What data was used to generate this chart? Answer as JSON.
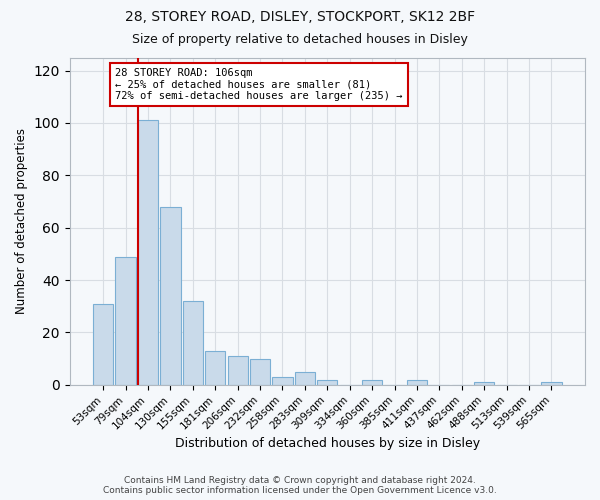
{
  "title1": "28, STOREY ROAD, DISLEY, STOCKPORT, SK12 2BF",
  "title2": "Size of property relative to detached houses in Disley",
  "xlabel": "Distribution of detached houses by size in Disley",
  "ylabel": "Number of detached properties",
  "bar_labels": [
    "53sqm",
    "79sqm",
    "104sqm",
    "130sqm",
    "155sqm",
    "181sqm",
    "206sqm",
    "232sqm",
    "258sqm",
    "283sqm",
    "309sqm",
    "334sqm",
    "360sqm",
    "385sqm",
    "411sqm",
    "437sqm",
    "462sqm",
    "488sqm",
    "513sqm",
    "539sqm",
    "565sqm"
  ],
  "bar_values": [
    31,
    49,
    101,
    68,
    32,
    13,
    11,
    10,
    3,
    5,
    2,
    0,
    2,
    0,
    2,
    0,
    0,
    1,
    0,
    0,
    1
  ],
  "bar_color": "#c9daea",
  "bar_edge_color": "#7bafd4",
  "red_line_bar_index": 2,
  "marker_label": "28 STOREY ROAD: 106sqm",
  "annotation_line1": "← 25% of detached houses are smaller (81)",
  "annotation_line2": "72% of semi-detached houses are larger (235) →",
  "ylim": [
    0,
    125
  ],
  "yticks": [
    0,
    20,
    40,
    60,
    80,
    100,
    120
  ],
  "footer1": "Contains HM Land Registry data © Crown copyright and database right 2024.",
  "footer2": "Contains public sector information licensed under the Open Government Licence v3.0.",
  "background_color": "#f5f8fb",
  "plot_background": "#f5f8fb",
  "grid_color": "#d8dde3",
  "red_line_color": "#cc0000",
  "annotation_box_edge": "#cc0000",
  "annotation_box_face": "#ffffff",
  "title_fontsize": 10,
  "subtitle_fontsize": 9
}
